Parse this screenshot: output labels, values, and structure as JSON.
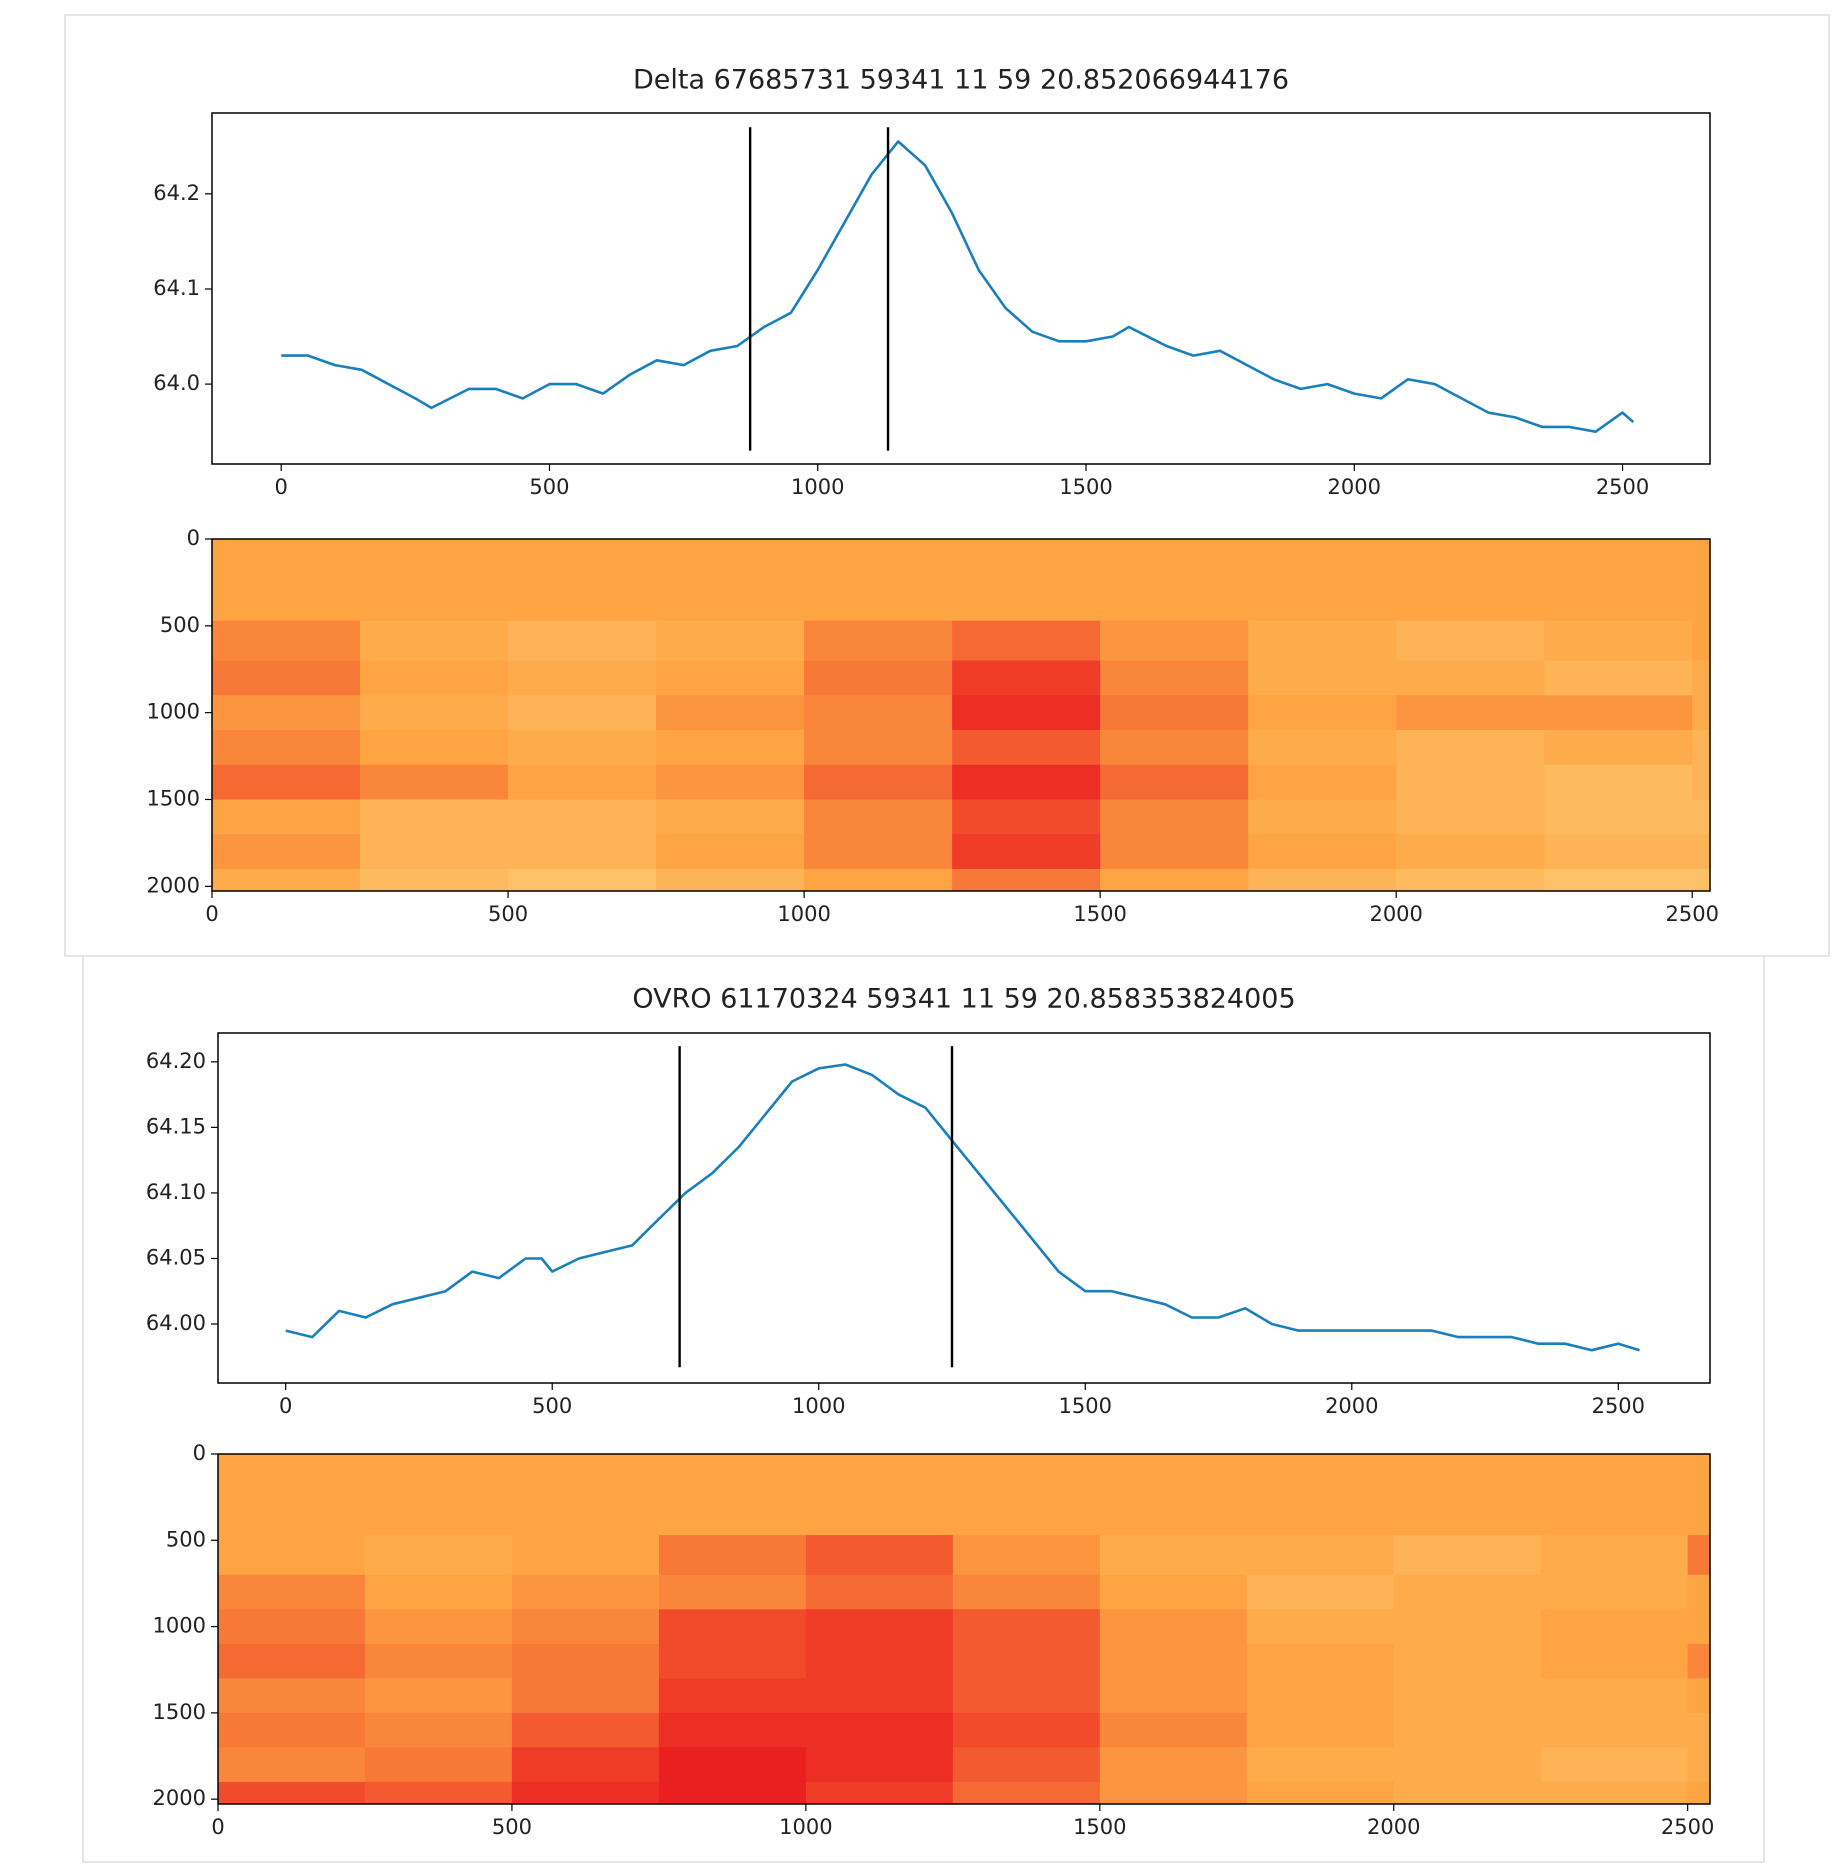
{
  "chart_data": [
    {
      "type": "line",
      "title": "Delta 67685731 59341 11 59 20.852066944176",
      "x": [
        0,
        50,
        100,
        150,
        200,
        250,
        280,
        350,
        400,
        450,
        500,
        550,
        600,
        650,
        700,
        750,
        800,
        850,
        900,
        950,
        1000,
        1050,
        1100,
        1150,
        1200,
        1250,
        1300,
        1350,
        1400,
        1450,
        1500,
        1550,
        1580,
        1650,
        1700,
        1750,
        1800,
        1850,
        1900,
        1950,
        2000,
        2050,
        2100,
        2150,
        2200,
        2250,
        2300,
        2350,
        2400,
        2450,
        2500,
        2520
      ],
      "series": [
        {
          "color": "#1a80bb",
          "values": [
            64.03,
            64.03,
            64.02,
            64.015,
            64.0,
            63.985,
            63.975,
            63.995,
            63.995,
            63.985,
            64.0,
            64.0,
            63.99,
            64.01,
            64.025,
            64.02,
            64.035,
            64.04,
            64.06,
            64.075,
            64.12,
            64.17,
            64.22,
            64.255,
            64.23,
            64.18,
            64.12,
            64.08,
            64.055,
            64.045,
            64.045,
            64.05,
            64.06,
            64.04,
            64.03,
            64.035,
            64.02,
            64.005,
            63.995,
            64.0,
            63.99,
            63.985,
            64.005,
            64.0,
            63.985,
            63.97,
            63.965,
            63.955,
            63.955,
            63.95,
            63.97,
            63.96
          ]
        }
      ],
      "vlines": [
        874,
        1131
      ],
      "vline_ylim": [
        63.93,
        64.27
      ],
      "vline_color": "#000000",
      "xlim": [
        -129,
        2663
      ],
      "ylim": [
        63.916,
        64.285
      ],
      "xticks": [
        0,
        500,
        1000,
        1500,
        2000,
        2500
      ],
      "yticks": [
        {
          "value": 64,
          "label": "64.0"
        },
        64.1,
        64.2
      ]
    },
    {
      "type": "heatmap",
      "x_edges": [
        0,
        250,
        500,
        750,
        1000,
        1250,
        1500,
        1750,
        2000,
        2250,
        2500,
        2530
      ],
      "y_edges": [
        0,
        470,
        700,
        900,
        1100,
        1300,
        1500,
        1700,
        1900,
        2027
      ],
      "colormap": [
        "#ffeda0",
        "#fea443",
        "#e8101c"
      ],
      "values": [
        [
          0.5,
          0.5,
          0.5,
          0.5,
          0.5,
          0.5,
          0.5,
          0.5,
          0.5,
          0.5,
          0.5
        ],
        [
          0.6,
          0.45,
          0.4,
          0.45,
          0.6,
          0.7,
          0.55,
          0.45,
          0.4,
          0.45,
          0.5
        ],
        [
          0.65,
          0.5,
          0.45,
          0.5,
          0.65,
          0.85,
          0.6,
          0.45,
          0.45,
          0.4,
          0.45
        ],
        [
          0.55,
          0.45,
          0.4,
          0.55,
          0.6,
          0.9,
          0.65,
          0.5,
          0.55,
          0.55,
          0.45
        ],
        [
          0.6,
          0.5,
          0.45,
          0.5,
          0.6,
          0.75,
          0.6,
          0.45,
          0.4,
          0.45,
          0.4
        ],
        [
          0.7,
          0.6,
          0.5,
          0.55,
          0.7,
          0.9,
          0.7,
          0.5,
          0.4,
          0.35,
          0.4
        ],
        [
          0.5,
          0.4,
          0.4,
          0.45,
          0.6,
          0.8,
          0.6,
          0.45,
          0.4,
          0.35,
          0.35
        ],
        [
          0.55,
          0.4,
          0.4,
          0.5,
          0.6,
          0.85,
          0.6,
          0.5,
          0.45,
          0.4,
          0.4
        ],
        [
          0.45,
          0.35,
          0.3,
          0.4,
          0.5,
          0.65,
          0.5,
          0.4,
          0.35,
          0.3,
          0.3
        ]
      ],
      "xlim": [
        0,
        2530
      ],
      "ylim": [
        2027,
        0
      ],
      "xticks": [
        0,
        500,
        1000,
        1500,
        2000,
        2500
      ],
      "yticks": [
        0,
        500,
        1000,
        1500,
        2000
      ]
    },
    {
      "type": "line",
      "title": "OVRO 61170324 59341 11 59 20.858353824005",
      "x": [
        0,
        50,
        100,
        150,
        200,
        300,
        350,
        400,
        450,
        480,
        500,
        550,
        600,
        650,
        700,
        750,
        800,
        850,
        900,
        950,
        1000,
        1050,
        1100,
        1150,
        1200,
        1250,
        1300,
        1350,
        1400,
        1450,
        1500,
        1550,
        1600,
        1650,
        1700,
        1750,
        1800,
        1850,
        1900,
        1950,
        2000,
        2050,
        2100,
        2150,
        2200,
        2250,
        2300,
        2350,
        2400,
        2450,
        2500,
        2540
      ],
      "series": [
        {
          "color": "#1a80bb",
          "values": [
            63.995,
            63.99,
            64.01,
            64.005,
            64.015,
            64.025,
            64.04,
            64.035,
            64.05,
            64.05,
            64.04,
            64.05,
            64.055,
            64.06,
            64.08,
            64.1,
            64.115,
            64.135,
            64.16,
            64.185,
            64.195,
            64.198,
            64.19,
            64.175,
            64.165,
            64.14,
            64.115,
            64.09,
            64.065,
            64.04,
            64.025,
            64.025,
            64.02,
            64.015,
            64.005,
            64.005,
            64.012,
            64.0,
            63.995,
            63.995,
            63.995,
            63.995,
            63.995,
            63.995,
            63.99,
            63.99,
            63.99,
            63.985,
            63.985,
            63.98,
            63.985,
            63.98
          ]
        }
      ],
      "vlines": [
        739,
        1250
      ],
      "vline_ylim": [
        63.967,
        64.212
      ],
      "vline_color": "#000000",
      "xlim": [
        -127,
        2672
      ],
      "ylim": [
        63.955,
        64.222
      ],
      "xticks": [
        0,
        500,
        1000,
        1500,
        2000,
        2500
      ],
      "yticks": [
        {
          "value": 64,
          "label": "64.00"
        },
        64.05,
        {
          "value": 64.1,
          "label": "64.10"
        },
        64.15,
        {
          "value": 64.2,
          "label": "64.20"
        }
      ]
    },
    {
      "type": "heatmap",
      "x_edges": [
        0,
        250,
        500,
        750,
        1000,
        1250,
        1500,
        1750,
        2000,
        2250,
        2500,
        2538
      ],
      "y_edges": [
        0,
        470,
        700,
        900,
        1100,
        1300,
        1500,
        1700,
        1900,
        2028
      ],
      "colormap": [
        "#ffeda0",
        "#fea443",
        "#e8101c"
      ],
      "values": [
        [
          0.5,
          0.5,
          0.5,
          0.5,
          0.5,
          0.5,
          0.5,
          0.5,
          0.5,
          0.5,
          0.5
        ],
        [
          0.5,
          0.45,
          0.5,
          0.65,
          0.75,
          0.55,
          0.45,
          0.45,
          0.4,
          0.45,
          0.65
        ],
        [
          0.6,
          0.5,
          0.55,
          0.6,
          0.7,
          0.6,
          0.5,
          0.4,
          0.45,
          0.45,
          0.5
        ],
        [
          0.65,
          0.55,
          0.6,
          0.8,
          0.85,
          0.75,
          0.55,
          0.45,
          0.45,
          0.5,
          0.5
        ],
        [
          0.7,
          0.6,
          0.65,
          0.8,
          0.85,
          0.75,
          0.55,
          0.5,
          0.45,
          0.5,
          0.6
        ],
        [
          0.6,
          0.55,
          0.65,
          0.85,
          0.85,
          0.75,
          0.55,
          0.5,
          0.45,
          0.45,
          0.5
        ],
        [
          0.65,
          0.6,
          0.75,
          0.9,
          0.9,
          0.8,
          0.6,
          0.5,
          0.45,
          0.45,
          0.45
        ],
        [
          0.6,
          0.65,
          0.85,
          0.95,
          0.9,
          0.75,
          0.55,
          0.45,
          0.45,
          0.4,
          0.45
        ],
        [
          0.8,
          0.75,
          0.9,
          0.95,
          0.85,
          0.7,
          0.55,
          0.5,
          0.45,
          0.45,
          0.5
        ]
      ],
      "xlim": [
        0,
        2538
      ],
      "ylim": [
        2028,
        0
      ],
      "xticks": [
        0,
        500,
        1000,
        1500,
        2000,
        2500
      ],
      "yticks": [
        0,
        500,
        1000,
        1500,
        2000
      ]
    }
  ]
}
